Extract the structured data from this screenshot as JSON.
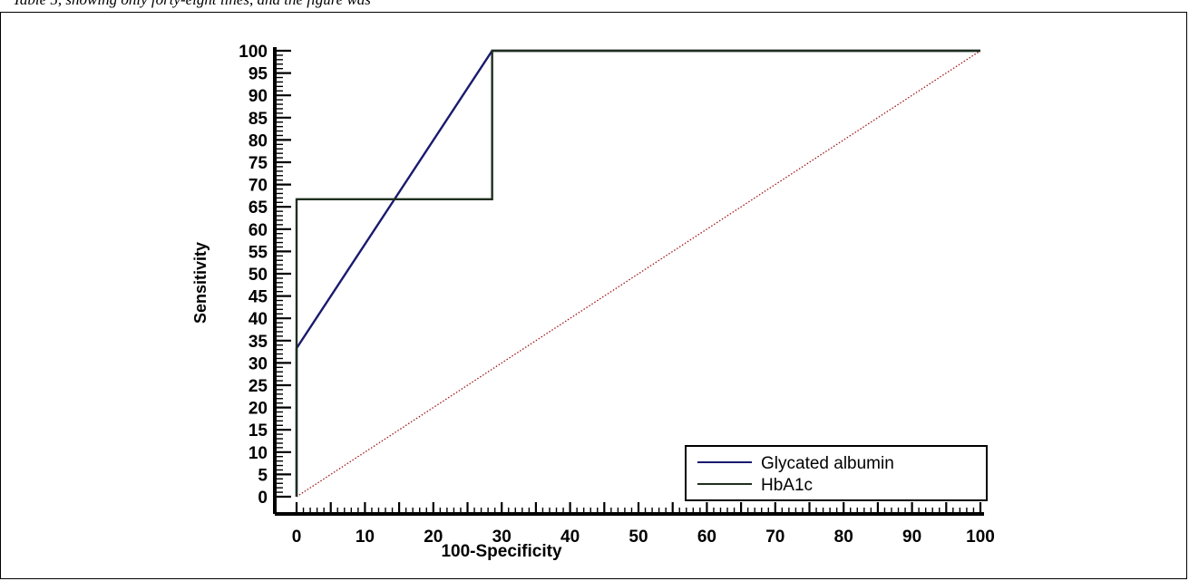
{
  "caption_fragment": "Table 5, showing only forty-eight lines, and the figure was",
  "chart_data": {
    "type": "line",
    "title": "",
    "xlabel": "100-Specificity",
    "ylabel": "Sensitivity",
    "xlim": [
      0,
      100
    ],
    "ylim": [
      0,
      100
    ],
    "x_ticks": [
      0,
      10,
      20,
      30,
      40,
      50,
      60,
      70,
      80,
      90,
      100
    ],
    "y_ticks": [
      0,
      5,
      10,
      15,
      20,
      25,
      30,
      35,
      40,
      45,
      50,
      55,
      60,
      65,
      70,
      75,
      80,
      85,
      90,
      95,
      100
    ],
    "legend_position": "bottom-right",
    "grid": false,
    "series": [
      {
        "name": "Glycated albumin",
        "color": "#1a1a6e",
        "x": [
          0,
          0,
          28.6,
          100
        ],
        "y": [
          0,
          33.3,
          100,
          100
        ]
      },
      {
        "name": "HbA1c",
        "color": "#1e2f1e",
        "x": [
          0,
          0,
          28.6,
          28.6,
          100
        ],
        "y": [
          0,
          66.7,
          66.7,
          100,
          100
        ]
      }
    ],
    "reference_line": {
      "color": "#a01818",
      "x": [
        0,
        100
      ],
      "y": [
        0,
        100
      ]
    }
  }
}
